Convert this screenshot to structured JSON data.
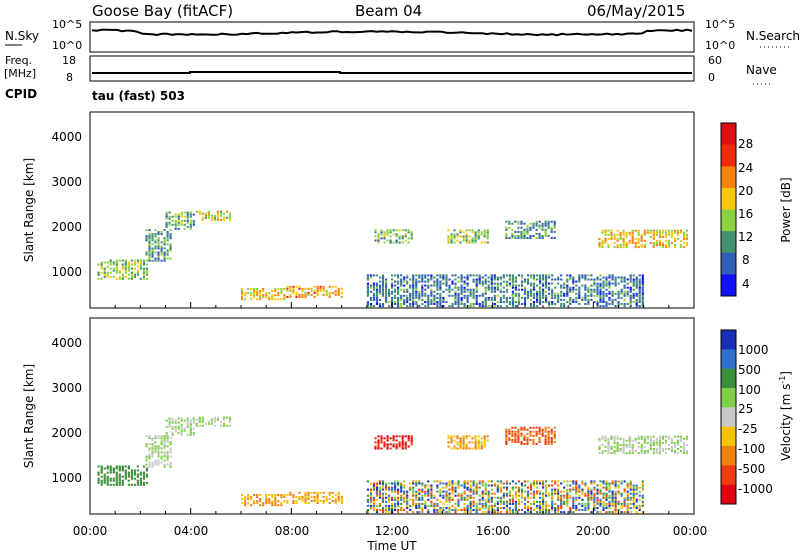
{
  "header": {
    "station": "Goose Bay (fitACF)",
    "beam": "Beam 04",
    "date": "06/May/2015"
  },
  "noise_panel": {
    "left_label": "N.Sky",
    "left_ticks": [
      "10^5",
      "10^0"
    ],
    "right_label": "N.Search",
    "right_ticks": [
      "10^5",
      "10^0"
    ]
  },
  "freq_panel": {
    "left_label_line1": "Freq.",
    "left_label_line2": "[MHz]",
    "left_ticks": [
      "18",
      "8"
    ],
    "right_label": "Nave",
    "right_ticks": [
      "60",
      "0"
    ]
  },
  "cpid_panel": {
    "label": "CPID",
    "value": "tau (fast) 503"
  },
  "power_panel": {
    "ylabel": "Slant Range [km]",
    "y_ticks": [
      "4000",
      "3000",
      "2000",
      "1000"
    ],
    "colorbar_label": "Power [dB]",
    "colorbar_ticks": [
      "28",
      "24",
      "20",
      "16",
      "12",
      "8",
      "4"
    ],
    "colorbar_colors": [
      "#1010ff",
      "#2f5fb7",
      "#43916e",
      "#8bd240",
      "#f6c70a",
      "#f6820c",
      "#ef2b0c",
      "#e01010"
    ]
  },
  "velocity_panel": {
    "ylabel": "Slant Range [km]",
    "y_ticks": [
      "4000",
      "3000",
      "2000",
      "1000"
    ],
    "colorbar_label": "Velocity [m s",
    "colorbar_sup": "-1",
    "colorbar_close": "]",
    "colorbar_ticks": [
      "1000",
      "500",
      "100",
      "25",
      "-25",
      "-100",
      "-500",
      "-1000"
    ],
    "colorbar_colors": [
      "#1a2fb8",
      "#2f6fd0",
      "#3a8f3a",
      "#7fd048",
      "#c8c8c8",
      "#f5c400",
      "#f0820f",
      "#ef3c10",
      "#e00010"
    ]
  },
  "x_axis": {
    "label": "Time UT",
    "ticks": [
      "00:00",
      "04:00",
      "08:00",
      "12:00",
      "16:00",
      "20:00",
      "00:00"
    ]
  },
  "chart_data": {
    "type": "heatmap",
    "x_range_hours": [
      0,
      24
    ],
    "y_range_km": [
      180,
      4500
    ],
    "echo_regions": [
      {
        "t0": 0.3,
        "t1": 2.3,
        "r0": 800,
        "r1": 1250,
        "power_db": 14,
        "velocity": 150
      },
      {
        "t0": 2.2,
        "t1": 3.2,
        "r0": 1200,
        "r1": 1900,
        "power_db": 10,
        "velocity": 25
      },
      {
        "t0": 3.0,
        "t1": 4.2,
        "r0": 1900,
        "r1": 2300,
        "power_db": 12,
        "velocity": 25
      },
      {
        "t0": 4.2,
        "t1": 5.6,
        "r0": 2100,
        "r1": 2300,
        "power_db": 16,
        "velocity": 25
      },
      {
        "t0": 6.0,
        "t1": 7.8,
        "r0": 350,
        "r1": 600,
        "power_db": 18,
        "velocity": -100
      },
      {
        "t0": 7.8,
        "t1": 10.0,
        "r0": 400,
        "r1": 650,
        "power_db": 20,
        "velocity": -100
      },
      {
        "t0": 11.3,
        "t1": 12.8,
        "r0": 1600,
        "r1": 1900,
        "power_db": 12,
        "velocity": -1000
      },
      {
        "t0": 14.2,
        "t1": 15.8,
        "r0": 1600,
        "r1": 1900,
        "power_db": 14,
        "velocity": -100
      },
      {
        "t0": 16.5,
        "t1": 18.5,
        "r0": 1700,
        "r1": 2100,
        "power_db": 10,
        "velocity": -500
      },
      {
        "t0": 20.2,
        "t1": 23.8,
        "r0": 1500,
        "r1": 1900,
        "power_db": 18,
        "velocity": 25
      },
      {
        "t0": 11.0,
        "t1": 22.0,
        "r0": 200,
        "r1": 900,
        "power_db": 8,
        "velocity": 100
      }
    ]
  }
}
